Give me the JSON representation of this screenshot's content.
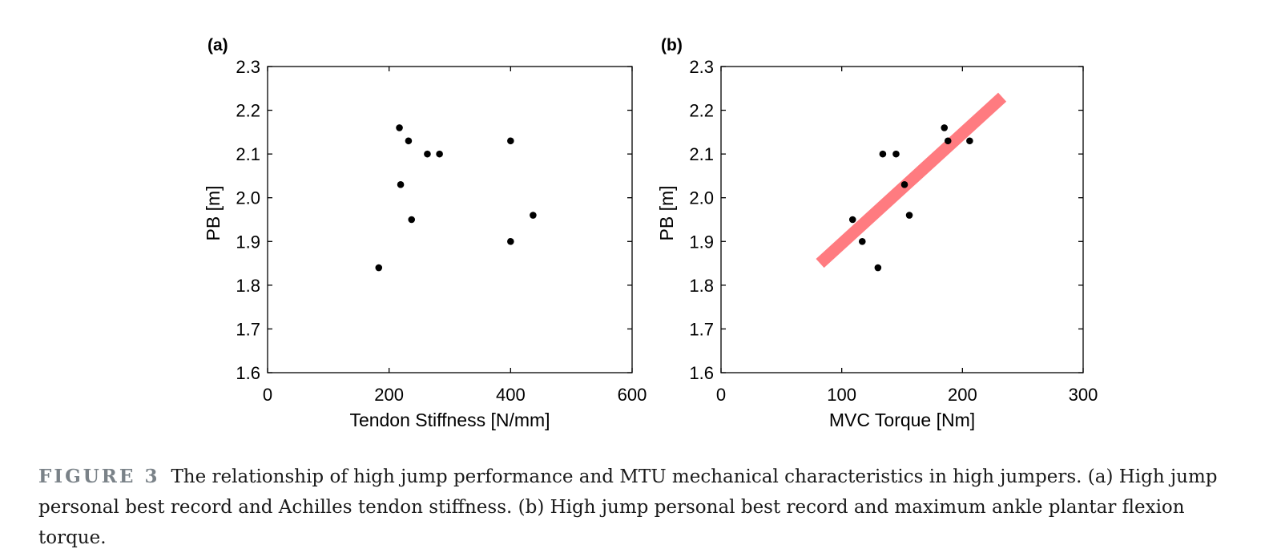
{
  "chart_data": [
    {
      "type": "scatter",
      "panel": "(a)",
      "xlabel": "Tendon Stiffness [N/mm]",
      "ylabel": "PB [m]",
      "xlim": [
        0,
        600
      ],
      "ylim": [
        1.6,
        2.3
      ],
      "xticks": [
        "0",
        "200",
        "400",
        "600"
      ],
      "yticks": [
        "1.6",
        "1.7",
        "1.8",
        "1.9",
        "2.0",
        "2.1",
        "2.2",
        "2.3"
      ],
      "grid": false,
      "points": [
        {
          "x": 217,
          "y": 2.16
        },
        {
          "x": 232,
          "y": 2.13
        },
        {
          "x": 263,
          "y": 2.1
        },
        {
          "x": 283,
          "y": 2.1
        },
        {
          "x": 219,
          "y": 2.03
        },
        {
          "x": 237,
          "y": 1.95
        },
        {
          "x": 183,
          "y": 1.84
        },
        {
          "x": 400,
          "y": 2.13
        },
        {
          "x": 437,
          "y": 1.96
        },
        {
          "x": 400,
          "y": 1.9
        }
      ]
    },
    {
      "type": "scatter",
      "panel": "(b)",
      "xlabel": "MVC Torque [Nm]",
      "ylabel": "PB [m]",
      "xlim": [
        0,
        300
      ],
      "ylim": [
        1.6,
        2.3
      ],
      "xticks": [
        "0",
        "100",
        "200",
        "300"
      ],
      "yticks": [
        "1.6",
        "1.7",
        "1.8",
        "1.9",
        "2.0",
        "2.1",
        "2.2",
        "2.3"
      ],
      "grid": false,
      "points": [
        {
          "x": 185,
          "y": 2.16
        },
        {
          "x": 188,
          "y": 2.13
        },
        {
          "x": 206,
          "y": 2.13
        },
        {
          "x": 134,
          "y": 2.1
        },
        {
          "x": 145,
          "y": 2.1
        },
        {
          "x": 152,
          "y": 2.03
        },
        {
          "x": 109,
          "y": 1.95
        },
        {
          "x": 156,
          "y": 1.96
        },
        {
          "x": 117,
          "y": 1.9
        },
        {
          "x": 130,
          "y": 1.84
        }
      ],
      "trend_line": {
        "x": [
          82,
          233
        ],
        "y": [
          1.85,
          2.23
        ],
        "color": "#ff7b80"
      }
    }
  ],
  "caption": {
    "label": "FIGURE 3",
    "text": "The relationship of high jump performance and MTU mechanical characteristics in high jumpers. (a) High jump personal best record and Achilles tendon stiffness. (b) High jump personal best record and maximum ankle plantar flexion torque."
  }
}
